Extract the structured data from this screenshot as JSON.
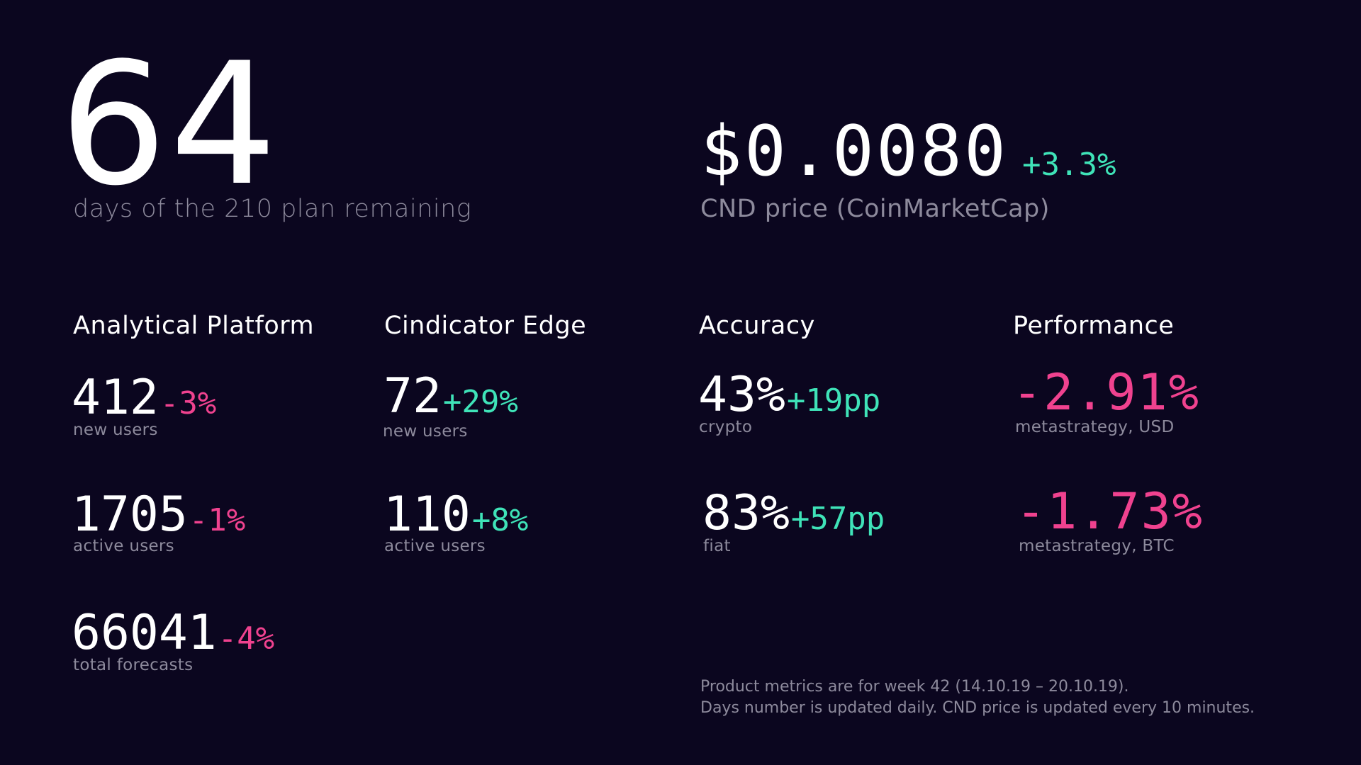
{
  "header": {
    "days": {
      "value": "64",
      "caption": "days of the 210 plan remaining"
    },
    "price": {
      "value": "$0.0080",
      "change": "+3.3%",
      "caption": "CND price (CoinMarketCap)"
    }
  },
  "sections": {
    "analytical_platform": {
      "title": "Analytical Platform",
      "metrics": [
        {
          "value": "412",
          "change": "-3%",
          "label": "new users"
        },
        {
          "value": "1705",
          "change": "-1%",
          "label": "active users"
        },
        {
          "value": "66041",
          "change": "-4%",
          "label": "total forecasts"
        }
      ]
    },
    "cindicator_edge": {
      "title": "Cindicator Edge",
      "metrics": [
        {
          "value": "72",
          "change": "+29%",
          "label": "new users"
        },
        {
          "value": "110",
          "change": "+8%",
          "label": "active users"
        }
      ]
    },
    "accuracy": {
      "title": "Accuracy",
      "metrics": [
        {
          "value": "43%",
          "change": "+19pp",
          "label": "crypto"
        },
        {
          "value": "83%",
          "change": "+57pp",
          "label": "fiat"
        }
      ]
    },
    "performance": {
      "title": "Performance",
      "metrics": [
        {
          "value": "-2.91%",
          "label": "metastrategy, USD"
        },
        {
          "value": "-1.73%",
          "label": "metastrategy, BTC"
        }
      ]
    }
  },
  "footnote": {
    "line1": "Product metrics are for week 42 (14.10.19 – 20.10.19).",
    "line2": "Days number is updated daily. CND price is updated every 10 minutes."
  },
  "colors": {
    "background": "#0b061f",
    "positive": "#3fe3b8",
    "negative": "#f0428f",
    "muted": "#8d8a9c"
  }
}
